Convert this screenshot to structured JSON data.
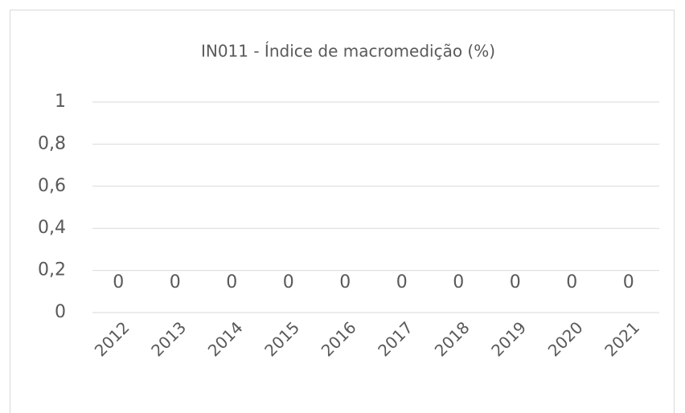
{
  "chart_data": {
    "type": "bar",
    "title": "IN011 - Índice de macromedição (%)",
    "categories": [
      "2012",
      "2013",
      "2014",
      "2015",
      "2016",
      "2017",
      "2018",
      "2019",
      "2020",
      "2021"
    ],
    "values": [
      0,
      0,
      0,
      0,
      0,
      0,
      0,
      0,
      0,
      0
    ],
    "color": "#4472c4",
    "ylim": [
      0,
      1
    ],
    "yticks": [
      0,
      {
        "value": 0.2,
        "label": "0,2"
      },
      {
        "value": 0.4,
        "label": "0,4"
      },
      {
        "value": 0.6,
        "label": "0,6"
      },
      {
        "value": 0.8,
        "label": "0,8"
      },
      1
    ],
    "grid": true
  }
}
